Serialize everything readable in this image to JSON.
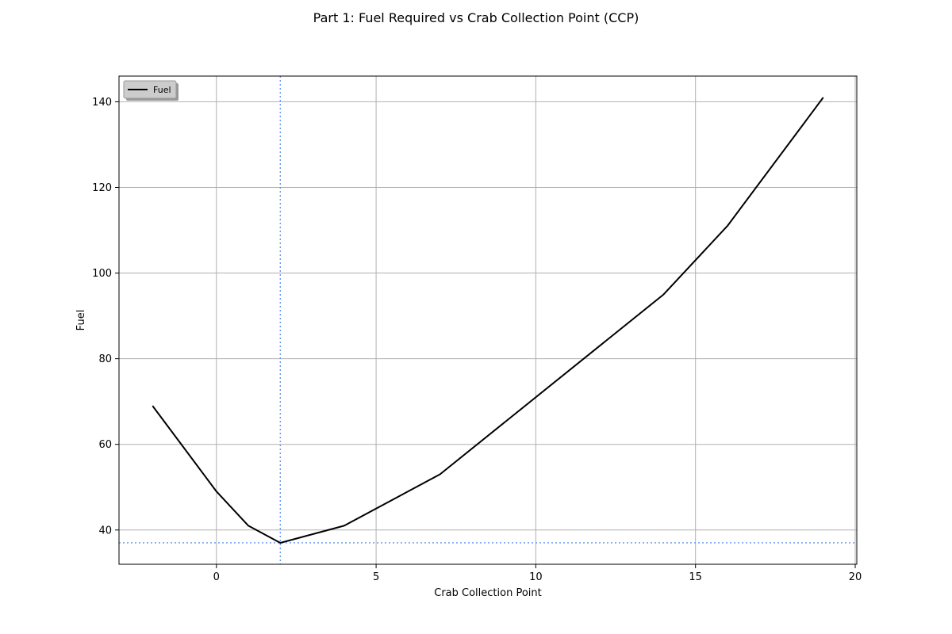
{
  "chart_data": {
    "type": "line",
    "title": "Part 1:  Fuel Required vs Crab Collection Point (CCP)",
    "xlabel": "Crab Collection Point",
    "ylabel": "Fuel",
    "xlim": [
      -3.05,
      20.05
    ],
    "ylim": [
      32,
      146
    ],
    "xticks": [
      0,
      5,
      10,
      15,
      20
    ],
    "yticks": [
      40,
      60,
      80,
      100,
      120,
      140
    ],
    "grid": true,
    "legend": {
      "placement": "top-left",
      "entries": [
        "Fuel"
      ]
    },
    "series": [
      {
        "name": "Fuel",
        "color": "#000000",
        "x": [
          -2,
          0,
          1,
          2,
          4,
          7,
          14,
          16,
          19
        ],
        "y": [
          69,
          49,
          41,
          37,
          41,
          53,
          95,
          111,
          141
        ]
      }
    ],
    "reference_lines": {
      "color": "#6495ed",
      "style": "dotted",
      "x": 2,
      "y": 37
    }
  }
}
